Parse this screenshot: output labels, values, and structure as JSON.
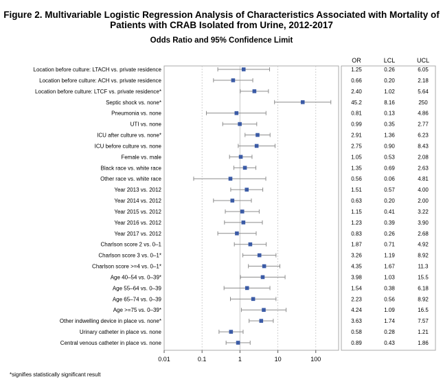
{
  "title": "Figure 2. Multivariable Logistic Regression Analysis of Characteristics Associated with Mortality of Patients with CRAB Isolated from Urine, 2012-2017",
  "subtitle": "Odds Ratio and 95% Confidence Limit",
  "footnote": "*signifies statistically significant result",
  "colors": {
    "marker": "#3b5ba6",
    "ci_line": "#8c8c8c",
    "frame": "#a8a8a8",
    "ref_line": "#c8c8c8"
  },
  "chart_data": {
    "type": "forest",
    "x_scale": "log",
    "xlim": [
      0.01,
      400
    ],
    "x_ticks": [
      "0.01",
      "0.1",
      "1",
      "10",
      "100"
    ],
    "reference_line": 1,
    "grid": true,
    "column_headers": [
      "OR",
      "LCL",
      "UCL"
    ],
    "rows": [
      {
        "label": "Location before culture: LTACH vs. private residence",
        "or": "1.25",
        "lcl": "0.26",
        "ucl": "6.05"
      },
      {
        "label": "Location before culture: ACH vs. private residence",
        "or": "0.66",
        "lcl": "0.20",
        "ucl": "2.18"
      },
      {
        "label": "Location before culture: LTCF vs. private residence*",
        "or": "2.40",
        "lcl": "1.02",
        "ucl": "5.64"
      },
      {
        "label": "Septic shock vs. none*",
        "or": "45.2",
        "lcl": "8.16",
        "ucl": "250"
      },
      {
        "label": "Pneumonia vs. none",
        "or": "0.81",
        "lcl": "0.13",
        "ucl": "4.86"
      },
      {
        "label": "UTI vs. none",
        "or": "0.99",
        "lcl": "0.35",
        "ucl": "2.77"
      },
      {
        "label": "ICU after culture vs. none*",
        "or": "2.91",
        "lcl": "1.36",
        "ucl": "6.23"
      },
      {
        "label": "ICU before culture vs. none",
        "or": "2.75",
        "lcl": "0.90",
        "ucl": "8.43"
      },
      {
        "label": "Female vs. male",
        "or": "1.05",
        "lcl": "0.53",
        "ucl": "2.08"
      },
      {
        "label": "Black race vs. white race",
        "or": "1.35",
        "lcl": "0.69",
        "ucl": "2.63"
      },
      {
        "label": "Other race vs. white race",
        "or": "0.56",
        "lcl": "0.06",
        "ucl": "4.81"
      },
      {
        "label": "Year 2013 vs. 2012",
        "or": "1.51",
        "lcl": "0.57",
        "ucl": "4.00"
      },
      {
        "label": "Year 2014 vs. 2012",
        "or": "0.63",
        "lcl": "0.20",
        "ucl": "2.00"
      },
      {
        "label": "Year 2015 vs. 2012",
        "or": "1.15",
        "lcl": "0.41",
        "ucl": "3.22"
      },
      {
        "label": "Year 2016 vs. 2012",
        "or": "1.23",
        "lcl": "0.39",
        "ucl": "3.90"
      },
      {
        "label": "Year 2017 vs. 2012",
        "or": "0.83",
        "lcl": "0.26",
        "ucl": "2.68"
      },
      {
        "label": "Charlson score 2 vs. 0–1",
        "or": "1.87",
        "lcl": "0.71",
        "ucl": "4.92"
      },
      {
        "label": "Charlson score 3 vs. 0–1*",
        "or": "3.26",
        "lcl": "1.19",
        "ucl": "8.92"
      },
      {
        "label": "Charlson score >=4 vs. 0–1*",
        "or": "4.35",
        "lcl": "1.67",
        "ucl": "11.3"
      },
      {
        "label": "Age 40–54 vs. 0–39*",
        "or": "3.98",
        "lcl": "1.03",
        "ucl": "15.5"
      },
      {
        "label": "Age 55–64 vs. 0–39",
        "or": "1.54",
        "lcl": "0.38",
        "ucl": "6.18"
      },
      {
        "label": "Age 65–74 vs. 0–39",
        "or": "2.23",
        "lcl": "0.56",
        "ucl": "8.92"
      },
      {
        "label": "Age >=75 vs. 0–39*",
        "or": "4.24",
        "lcl": "1.09",
        "ucl": "16.5"
      },
      {
        "label": "Other indwelling device in place vs. none*",
        "or": "3.63",
        "lcl": "1.74",
        "ucl": "7.57"
      },
      {
        "label": "Urinary catheter in place vs. none",
        "or": "0.58",
        "lcl": "0.28",
        "ucl": "1.21"
      },
      {
        "label": "Central venous catheter in place vs. none",
        "or": "0.89",
        "lcl": "0.43",
        "ucl": "1.86"
      }
    ]
  }
}
